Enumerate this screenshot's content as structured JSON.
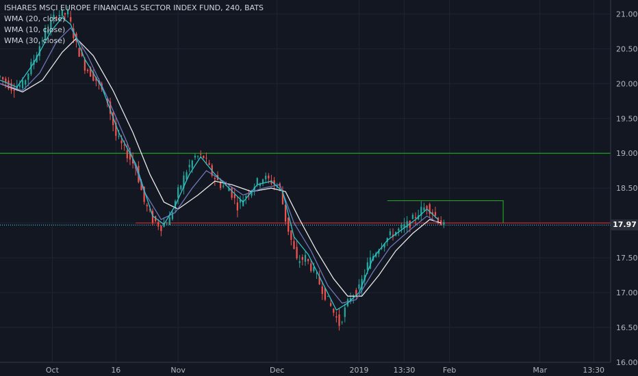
{
  "legend": {
    "title": "ISHARES MSCI EUROPE FINANCIALS SECTOR INDEX FUND, 240, BATS",
    "indicators": [
      "WMA (20, close)",
      "WMA (10, close)",
      "WMA (30, close)"
    ]
  },
  "last_price": "17.97",
  "colors": {
    "background": "#131722",
    "grid": "#1f2433",
    "up": "#26a69a",
    "down": "#ef5350",
    "wma10": "#2ec4c9",
    "wma20": "#6f78b8",
    "wma30": "#e8e8e8",
    "support_line": "#1fa01f",
    "resistance_line": "#c62828",
    "last_price_line": "#4fc3f7",
    "rect": "#1fa01f"
  },
  "chart_data": {
    "type": "candlestick",
    "title": "ISHARES MSCI EUROPE FINANCIALS SECTOR INDEX FUND, 240, BATS",
    "y_ticks": [
      "16.00",
      "16.50",
      "17.00",
      "17.50",
      "18.00",
      "18.50",
      "19.00",
      "19.50",
      "20.00",
      "20.50",
      "21.00"
    ],
    "y_tick_values": [
      16.0,
      16.5,
      17.0,
      17.5,
      18.0,
      18.5,
      19.0,
      19.5,
      20.0,
      20.5,
      21.0
    ],
    "ylim": [
      16.0,
      21.2
    ],
    "x_ticks": [
      "Oct",
      "16",
      "Nov",
      "Dec",
      "2019",
      "13:30",
      "Feb",
      "Mar",
      "13:30"
    ],
    "x_tick_positions": [
      18.5,
      41,
      63,
      98,
      127,
      143,
      159,
      191,
      210
    ],
    "x_range": [
      0,
      216
    ],
    "close_points": [
      [
        0,
        20.1
      ],
      [
        4,
        19.95
      ],
      [
        8,
        19.98
      ],
      [
        12,
        20.35
      ],
      [
        16,
        20.75
      ],
      [
        20,
        21.0
      ],
      [
        24,
        21.0
      ],
      [
        27,
        20.55
      ],
      [
        30,
        20.25
      ],
      [
        34,
        20.05
      ],
      [
        38,
        19.75
      ],
      [
        41,
        19.25
      ],
      [
        44,
        19.05
      ],
      [
        48,
        18.8
      ],
      [
        51,
        18.3
      ],
      [
        54,
        18.05
      ],
      [
        57,
        17.95
      ],
      [
        60,
        18.05
      ],
      [
        63,
        18.45
      ],
      [
        66,
        18.75
      ],
      [
        69,
        18.95
      ],
      [
        72,
        18.95
      ],
      [
        75,
        18.7
      ],
      [
        78,
        18.55
      ],
      [
        81,
        18.5
      ],
      [
        84,
        18.25
      ],
      [
        87,
        18.4
      ],
      [
        90,
        18.55
      ],
      [
        93,
        18.65
      ],
      [
        96,
        18.6
      ],
      [
        99,
        18.5
      ],
      [
        101,
        18.05
      ],
      [
        103,
        17.75
      ],
      [
        105,
        17.45
      ],
      [
        108,
        17.5
      ],
      [
        111,
        17.3
      ],
      [
        114,
        17.05
      ],
      [
        117,
        16.8
      ],
      [
        120,
        16.55
      ],
      [
        122,
        16.75
      ],
      [
        124,
        16.95
      ],
      [
        127,
        17.05
      ],
      [
        130,
        17.4
      ],
      [
        133,
        17.6
      ],
      [
        136,
        17.75
      ],
      [
        139,
        17.85
      ],
      [
        142,
        17.92
      ],
      [
        145,
        18.0
      ],
      [
        148,
        18.15
      ],
      [
        151,
        18.25
      ],
      [
        153,
        18.15
      ],
      [
        155,
        18.05
      ],
      [
        157,
        17.95
      ]
    ],
    "wma10_points": [
      [
        0,
        20.05
      ],
      [
        6,
        19.95
      ],
      [
        12,
        20.3
      ],
      [
        18,
        20.75
      ],
      [
        22,
        20.95
      ],
      [
        25,
        20.85
      ],
      [
        30,
        20.35
      ],
      [
        36,
        19.95
      ],
      [
        42,
        19.3
      ],
      [
        48,
        18.85
      ],
      [
        54,
        18.1
      ],
      [
        58,
        17.98
      ],
      [
        62,
        18.25
      ],
      [
        67,
        18.7
      ],
      [
        71,
        18.95
      ],
      [
        76,
        18.7
      ],
      [
        81,
        18.5
      ],
      [
        86,
        18.3
      ],
      [
        91,
        18.55
      ],
      [
        96,
        18.6
      ],
      [
        100,
        18.45
      ],
      [
        104,
        17.8
      ],
      [
        109,
        17.55
      ],
      [
        114,
        17.15
      ],
      [
        119,
        16.75
      ],
      [
        123,
        16.85
      ],
      [
        127,
        17.0
      ],
      [
        132,
        17.5
      ],
      [
        137,
        17.75
      ],
      [
        142,
        17.9
      ],
      [
        147,
        18.05
      ],
      [
        151,
        18.2
      ],
      [
        155,
        18.05
      ]
    ],
    "wma20_points": [
      [
        0,
        20.0
      ],
      [
        8,
        19.9
      ],
      [
        14,
        20.15
      ],
      [
        20,
        20.6
      ],
      [
        25,
        20.8
      ],
      [
        31,
        20.4
      ],
      [
        38,
        19.8
      ],
      [
        45,
        19.15
      ],
      [
        51,
        18.45
      ],
      [
        57,
        18.05
      ],
      [
        62,
        18.15
      ],
      [
        68,
        18.5
      ],
      [
        73,
        18.75
      ],
      [
        79,
        18.6
      ],
      [
        86,
        18.4
      ],
      [
        93,
        18.5
      ],
      [
        99,
        18.55
      ],
      [
        104,
        18.0
      ],
      [
        110,
        17.6
      ],
      [
        116,
        17.1
      ],
      [
        121,
        16.85
      ],
      [
        126,
        16.9
      ],
      [
        132,
        17.3
      ],
      [
        138,
        17.65
      ],
      [
        145,
        17.9
      ],
      [
        151,
        18.1
      ],
      [
        155,
        18.0
      ]
    ],
    "wma30_points": [
      [
        0,
        20.0
      ],
      [
        8,
        19.88
      ],
      [
        15,
        20.05
      ],
      [
        22,
        20.45
      ],
      [
        27,
        20.65
      ],
      [
        33,
        20.4
      ],
      [
        40,
        19.9
      ],
      [
        47,
        19.3
      ],
      [
        53,
        18.7
      ],
      [
        58,
        18.3
      ],
      [
        63,
        18.2
      ],
      [
        70,
        18.4
      ],
      [
        76,
        18.6
      ],
      [
        82,
        18.55
      ],
      [
        89,
        18.45
      ],
      [
        96,
        18.5
      ],
      [
        101,
        18.45
      ],
      [
        106,
        18.05
      ],
      [
        112,
        17.6
      ],
      [
        118,
        17.2
      ],
      [
        123,
        16.95
      ],
      [
        128,
        16.95
      ],
      [
        134,
        17.25
      ],
      [
        140,
        17.6
      ],
      [
        146,
        17.85
      ],
      [
        152,
        18.05
      ],
      [
        156,
        18.0
      ]
    ],
    "horizontal_lines": [
      {
        "price": 19.0,
        "from_x": 0,
        "to_x": 216,
        "color_key": "support_line"
      },
      {
        "price": 18.0,
        "from_x": 48,
        "to_x": 216,
        "color_key": "resistance_line"
      },
      {
        "price": 17.97,
        "from_x": 0,
        "to_x": 216,
        "color_key": "last_price_line",
        "dotted": true
      }
    ],
    "rectangle": {
      "x0": 137,
      "x1": 178,
      "top": 18.32,
      "bottom": 18.0
    },
    "last_price": 17.97,
    "grid": true
  }
}
